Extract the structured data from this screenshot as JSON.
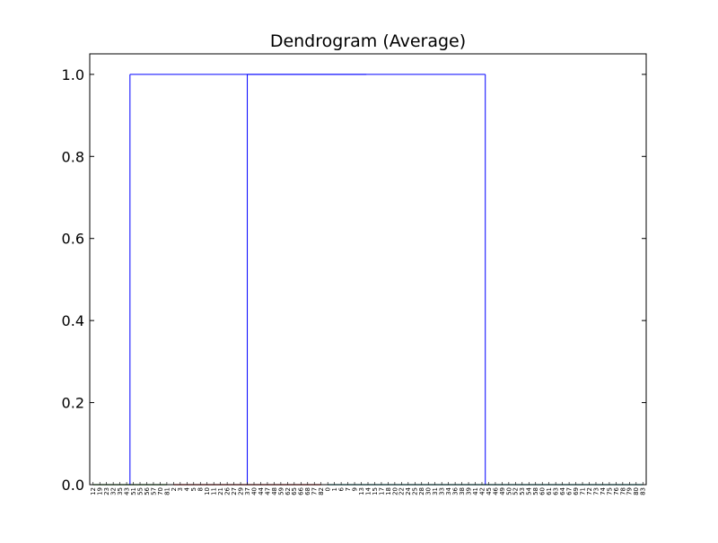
{
  "chart_data": {
    "type": "dendrogram",
    "title": "Dendrogram (Average)",
    "xlabel": "",
    "ylabel": "",
    "ylim": [
      0,
      1.05
    ],
    "y_ticks": [
      "0.0",
      "0.2",
      "0.4",
      "0.6",
      "0.8",
      "1.0"
    ],
    "y_tick_values": [
      0.0,
      0.2,
      0.4,
      0.6,
      0.8,
      1.0
    ],
    "grid": false,
    "leaf_labels": [
      "12",
      "19",
      "23",
      "32",
      "35",
      "43",
      "51",
      "55",
      "56",
      "57",
      "70",
      "81",
      "2",
      "3",
      "4",
      "5",
      "8",
      "10",
      "11",
      "21",
      "26",
      "27",
      "29",
      "37",
      "40",
      "44",
      "47",
      "48",
      "59",
      "62",
      "65",
      "66",
      "68",
      "77",
      "82",
      "0",
      "1",
      "6",
      "7",
      "9",
      "13",
      "14",
      "15",
      "17",
      "18",
      "20",
      "22",
      "24",
      "25",
      "28",
      "30",
      "31",
      "33",
      "34",
      "36",
      "38",
      "39",
      "41",
      "42",
      "45",
      "46",
      "49",
      "50",
      "52",
      "53",
      "54",
      "58",
      "60",
      "61",
      "63",
      "64",
      "67",
      "69",
      "71",
      "72",
      "73",
      "74",
      "75",
      "76",
      "78",
      "79",
      "80",
      "83"
    ],
    "clusters": [
      {
        "first": 0,
        "last": 11,
        "height": 0.0
      },
      {
        "first": 12,
        "last": 34,
        "height": 0.0
      },
      {
        "first": 35,
        "last": 82,
        "height": 0.0
      }
    ],
    "merges": [
      {
        "left": "cluster-b",
        "right": "cluster-c",
        "height": 1.0
      },
      {
        "left": "cluster-a",
        "right": "cluster-bc",
        "height": 1.0
      }
    ],
    "colors": {
      "link": "#0000ff",
      "leaf_cluster_1": "#008000",
      "leaf_cluster_2": "#ff0000",
      "leaf_cluster_3": "#00bfbf",
      "axes": "#000000"
    }
  }
}
